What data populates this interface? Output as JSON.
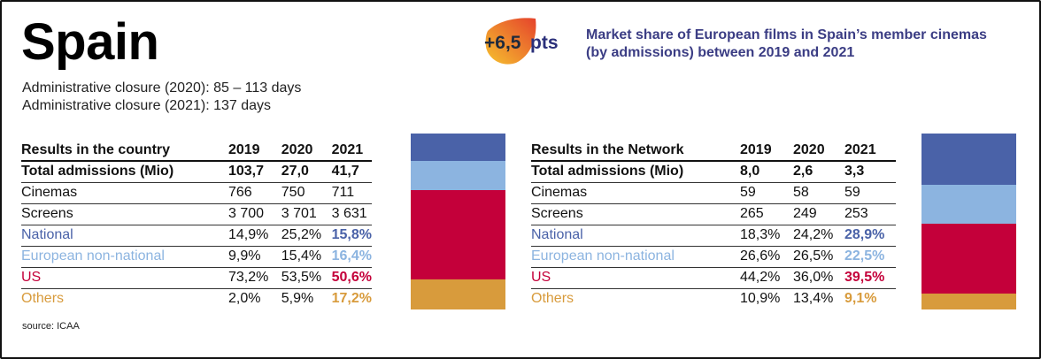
{
  "country": "Spain",
  "closures": [
    "Administrative closure (2020): 85 – 113 days",
    "Administrative closure (2021): 137 days"
  ],
  "badge": {
    "value": "+6,5",
    "unit": "pts"
  },
  "headline": "Market share of European films in Spain’s member cinemas (by admissions) between 2019 and 2021",
  "colors": {
    "national": "#4a62a8",
    "european": "#8cb4e0",
    "us": "#c4003a",
    "others": "#d89b3c",
    "badge_gradient": [
      "#f6c22e",
      "#e5432c"
    ]
  },
  "country_table": {
    "title": "Results in the country",
    "years": [
      "2019",
      "2020",
      "2021"
    ],
    "rows": [
      {
        "label": "Total admissions (Mio)",
        "values": [
          "103,7",
          "27,0",
          "41,7"
        ]
      },
      {
        "label": "Cinemas",
        "values": [
          "766",
          "750",
          "711"
        ]
      },
      {
        "label": "Screens",
        "values": [
          "3 700",
          "3 701",
          "3 631"
        ]
      },
      {
        "label": "National",
        "values": [
          "14,9%",
          "25,2%",
          "15,8%"
        ]
      },
      {
        "label": "European non-national",
        "values": [
          "9,9%",
          "15,4%",
          "16,4%"
        ]
      },
      {
        "label": "US",
        "values": [
          "73,2%",
          "53,5%",
          "50,6%"
        ]
      },
      {
        "label": "Others",
        "values": [
          "2,0%",
          "5,9%",
          "17,2%"
        ]
      }
    ]
  },
  "network_table": {
    "title": "Results in the Network",
    "years": [
      "2019",
      "2020",
      "2021"
    ],
    "rows": [
      {
        "label": "Total admissions (Mio)",
        "values": [
          "8,0",
          "2,6",
          "3,3"
        ]
      },
      {
        "label": "Cinemas",
        "values": [
          "59",
          "58",
          "59"
        ]
      },
      {
        "label": "Screens",
        "values": [
          "265",
          "249",
          "253"
        ]
      },
      {
        "label": "National",
        "values": [
          "18,3%",
          "24,2%",
          "28,9%"
        ]
      },
      {
        "label": "European non-national",
        "values": [
          "26,6%",
          "26,5%",
          "22,5%"
        ]
      },
      {
        "label": "US",
        "values": [
          "44,2%",
          "36,0%",
          "39,5%"
        ]
      },
      {
        "label": "Others",
        "values": [
          "10,9%",
          "13,4%",
          "9,1%"
        ]
      }
    ]
  },
  "country_stack_2021": {
    "national": 15.8,
    "european": 16.4,
    "us": 50.6,
    "others": 17.2
  },
  "network_stack_2021": {
    "national": 28.9,
    "european": 22.5,
    "us": 39.5,
    "others": 9.1
  },
  "source": "source: ICAA"
}
